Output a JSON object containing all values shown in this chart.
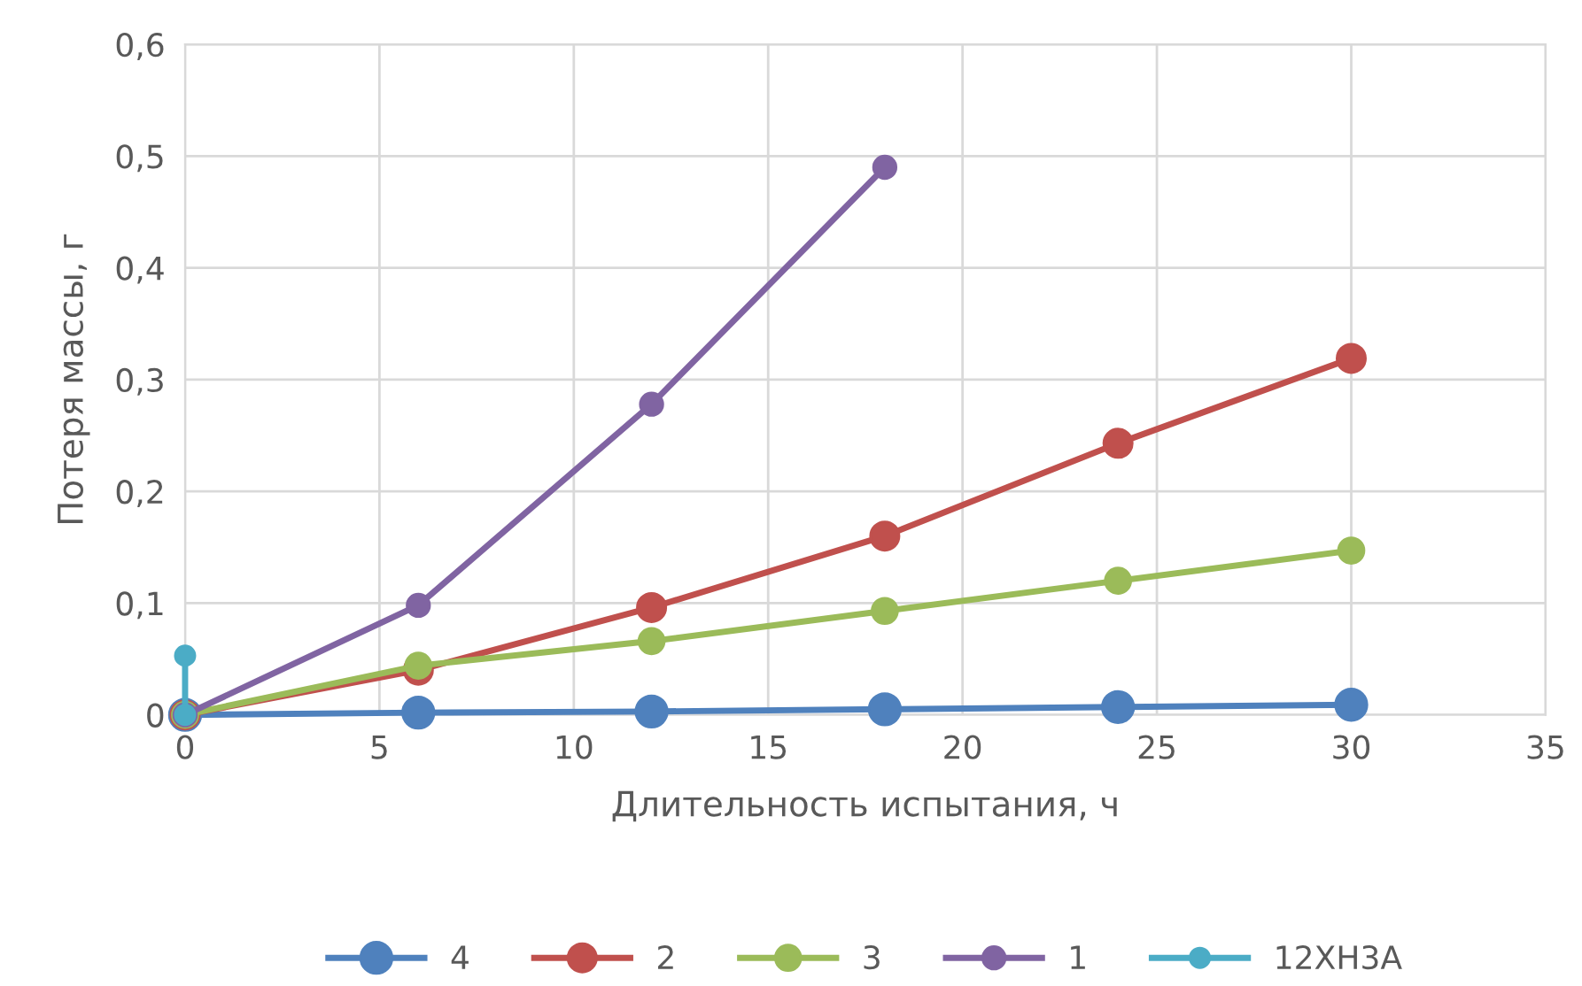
{
  "chart_data": {
    "type": "line",
    "xlabel": "Длительность испытания, ч",
    "ylabel": "Потеря массы, г",
    "xlim": [
      0,
      35
    ],
    "xticks": [
      0,
      5,
      10,
      15,
      20,
      25,
      30,
      35
    ],
    "ylim": [
      0,
      0.6
    ],
    "yticks": [
      0,
      {
        "value": 0.1,
        "label": "0,1"
      },
      {
        "value": 0.2,
        "label": "0,2"
      },
      {
        "value": 0.3,
        "label": "0,3"
      },
      {
        "value": 0.4,
        "label": "0,4"
      },
      {
        "value": 0.5,
        "label": "0,5"
      },
      {
        "value": 0.6,
        "label": "0,6"
      }
    ],
    "grid": true,
    "legend": "bottom",
    "marker": "circle",
    "line_style": "solid",
    "series": [
      {
        "name": "4",
        "color": "#4f81bd",
        "x": [
          0,
          6,
          12,
          18,
          24,
          30
        ],
        "values": [
          0,
          0.002,
          0.003,
          0.005,
          0.007,
          0.009
        ]
      },
      {
        "name": "2",
        "color": "#c0504d",
        "x": [
          0,
          6,
          12,
          18,
          24,
          30
        ],
        "values": [
          0,
          0.04,
          0.096,
          0.16,
          0.243,
          0.319
        ]
      },
      {
        "name": "3",
        "color": "#9bbb59",
        "x": [
          0,
          6,
          12,
          18,
          24,
          30
        ],
        "values": [
          0,
          0.044,
          0.066,
          0.093,
          0.12,
          0.147
        ]
      },
      {
        "name": "1",
        "color": "#8064a2",
        "x": [
          0,
          6,
          12,
          18
        ],
        "values": [
          0,
          0.098,
          0.278,
          0.49
        ]
      },
      {
        "name": "12ХН3А",
        "color": "#4bacc6",
        "x": [
          0,
          0
        ],
        "values": [
          0,
          0.053
        ]
      }
    ]
  }
}
